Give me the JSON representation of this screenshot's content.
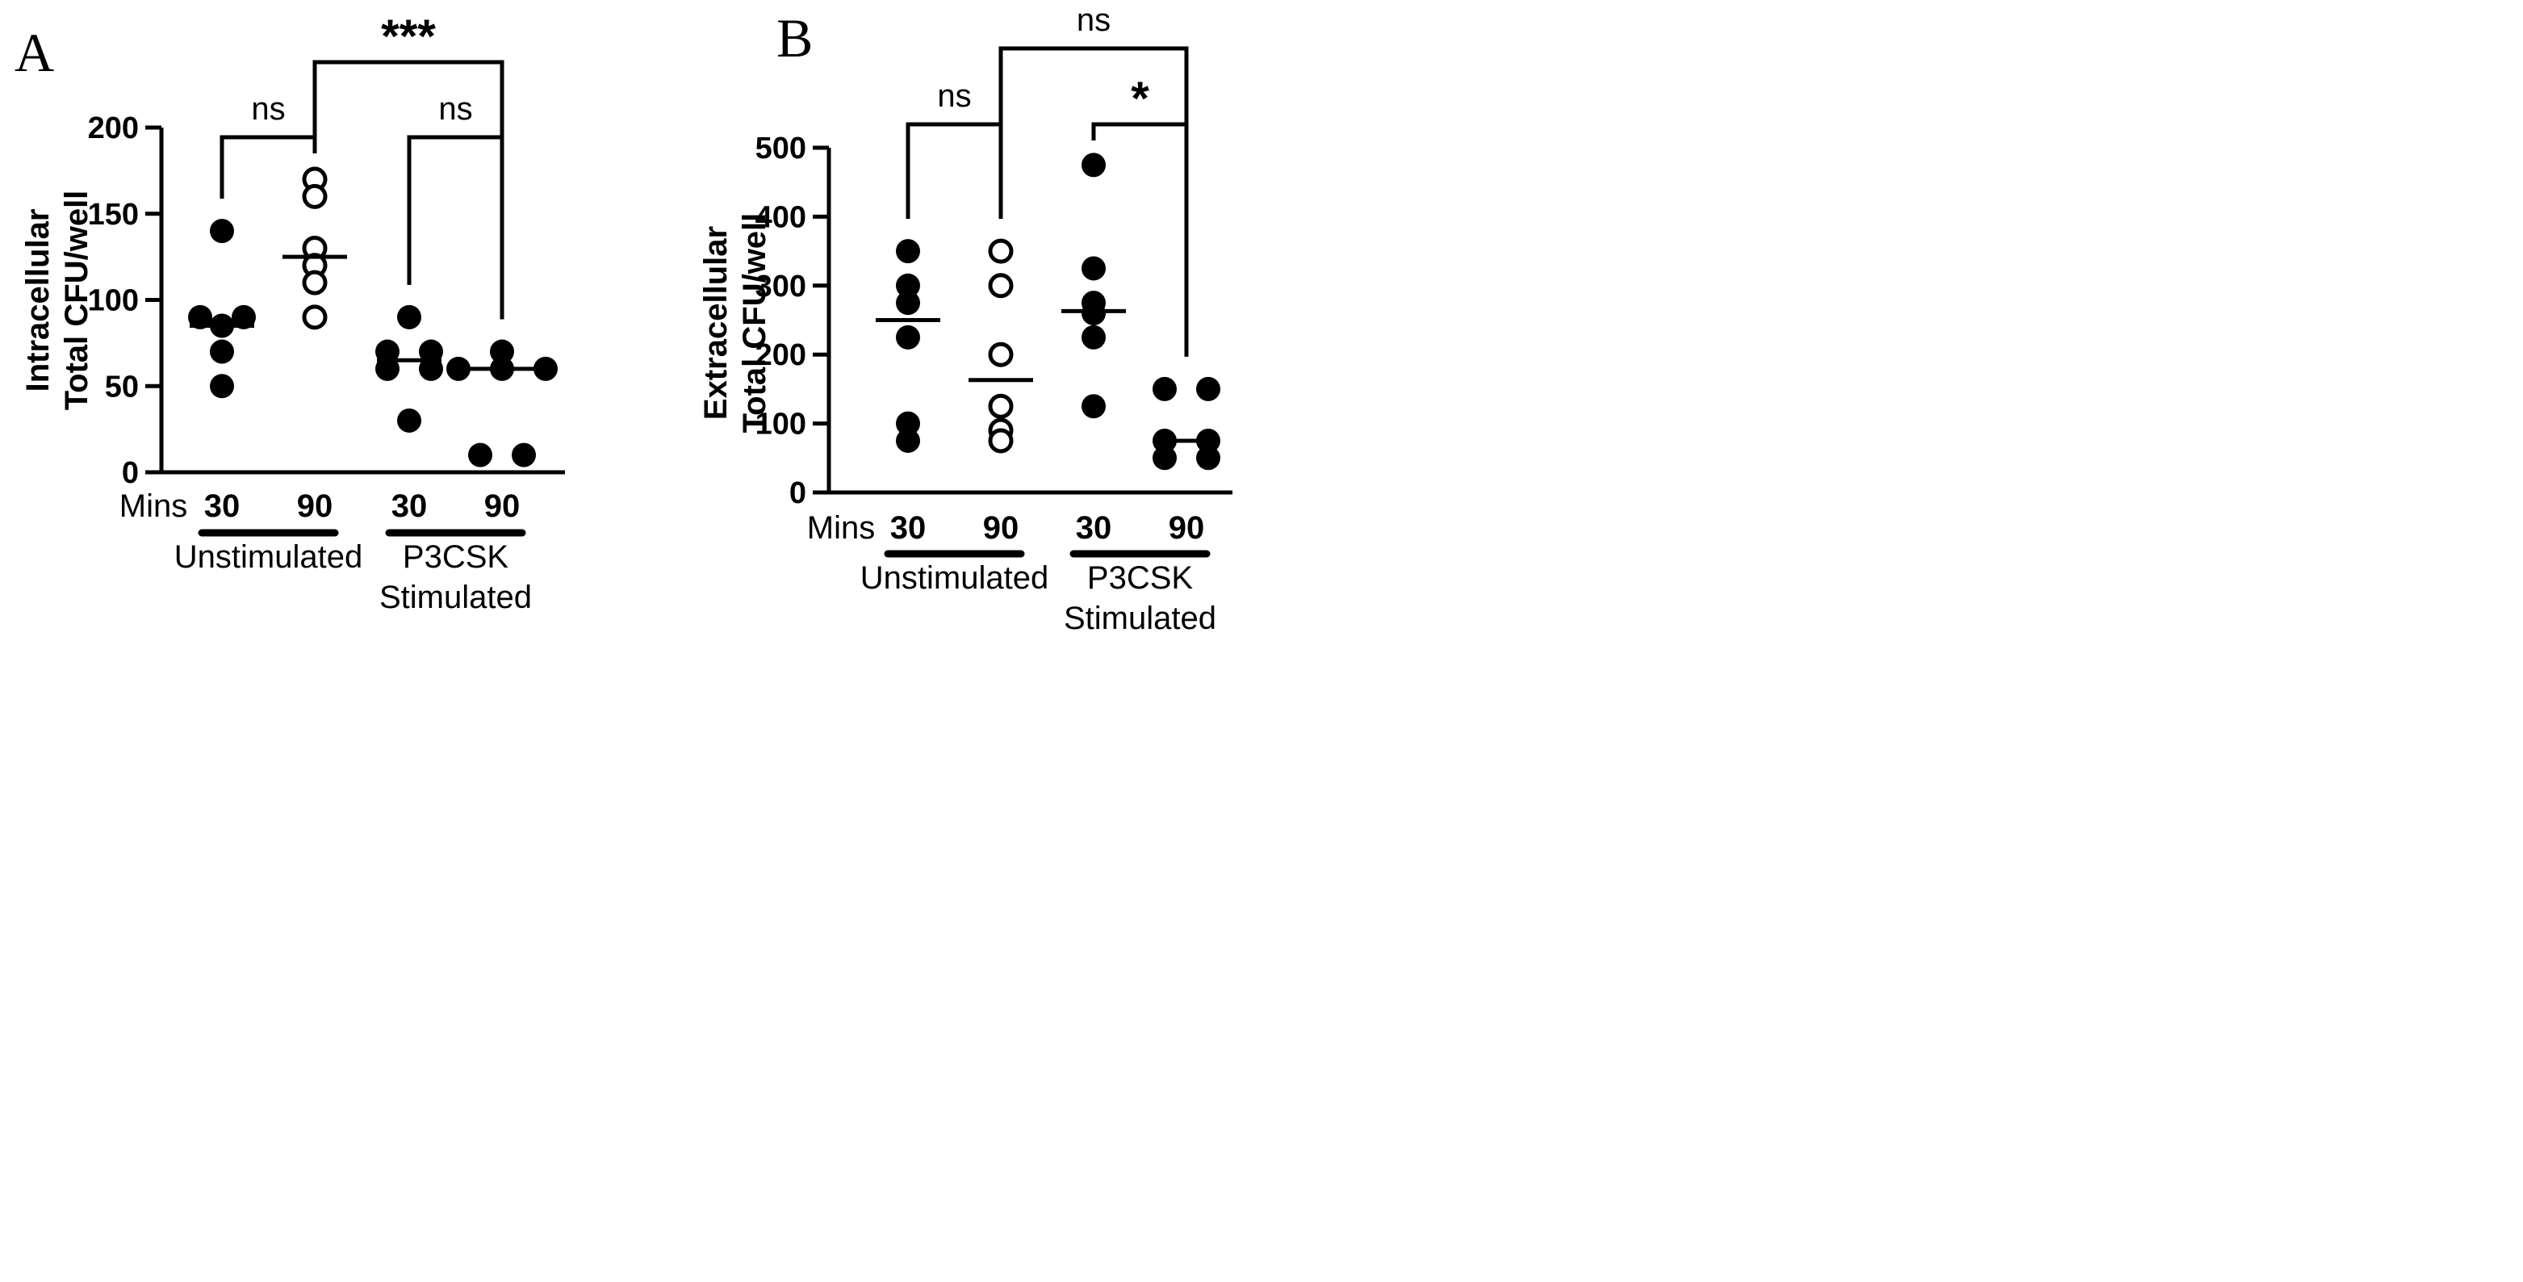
{
  "chart_data": [
    {
      "type": "scatter",
      "panel_label": "A",
      "ylabel_lines": [
        "Intracellular",
        "Total CFU/well"
      ],
      "ylim": [
        0,
        200
      ],
      "yticks": [
        0,
        50,
        100,
        150,
        200
      ],
      "x_prefix": "Mins",
      "groups": [
        {
          "label": "30",
          "marker": "filled",
          "values": [
            140,
            90,
            90,
            85,
            70,
            50
          ],
          "mean": 85
        },
        {
          "label": "90",
          "marker": "open",
          "values": [
            170,
            160,
            130,
            120,
            110,
            90
          ],
          "mean": 125
        },
        {
          "label": "30",
          "marker": "filled",
          "values": [
            90,
            70,
            70,
            60,
            60,
            30
          ],
          "mean": 65
        },
        {
          "label": "90",
          "marker": "filled",
          "values": [
            70,
            60,
            60,
            60,
            10,
            10
          ],
          "mean": 60
        }
      ],
      "conditions": [
        {
          "lines": [
            "Unstimulated"
          ],
          "groups": [
            0,
            1
          ]
        },
        {
          "lines": [
            "P3CSK",
            "Stimulated"
          ],
          "groups": [
            2,
            3
          ]
        }
      ],
      "comparisons": [
        {
          "from": 0,
          "to": 1,
          "label": "ns"
        },
        {
          "from": 2,
          "to": 3,
          "label": "ns"
        },
        {
          "from": 1,
          "to": 3,
          "label": "***"
        }
      ]
    },
    {
      "type": "scatter",
      "panel_label": "B",
      "ylabel_lines": [
        "Extracellular",
        "Total CFU/well"
      ],
      "ylim": [
        0,
        500
      ],
      "yticks": [
        0,
        100,
        200,
        300,
        400,
        500
      ],
      "x_prefix": "Mins",
      "groups": [
        {
          "label": "30",
          "marker": "filled",
          "values": [
            350,
            300,
            275,
            225,
            100,
            75
          ],
          "mean": 250
        },
        {
          "label": "90",
          "marker": "open",
          "values": [
            350,
            300,
            200,
            125,
            90,
            75
          ],
          "mean": 163
        },
        {
          "label": "30",
          "marker": "filled",
          "values": [
            475,
            325,
            275,
            260,
            225,
            125
          ],
          "mean": 263
        },
        {
          "label": "90",
          "marker": "filled",
          "values": [
            150,
            150,
            75,
            75,
            50,
            50
          ],
          "mean": 75
        }
      ],
      "conditions": [
        {
          "lines": [
            "Unstimulated"
          ],
          "groups": [
            0,
            1
          ]
        },
        {
          "lines": [
            "P3CSK",
            "Stimulated"
          ],
          "groups": [
            2,
            3
          ]
        }
      ],
      "comparisons": [
        {
          "from": 0,
          "to": 1,
          "label": "ns"
        },
        {
          "from": 2,
          "to": 3,
          "label": "*"
        },
        {
          "from": 1,
          "to": 3,
          "label": "ns"
        }
      ]
    }
  ]
}
